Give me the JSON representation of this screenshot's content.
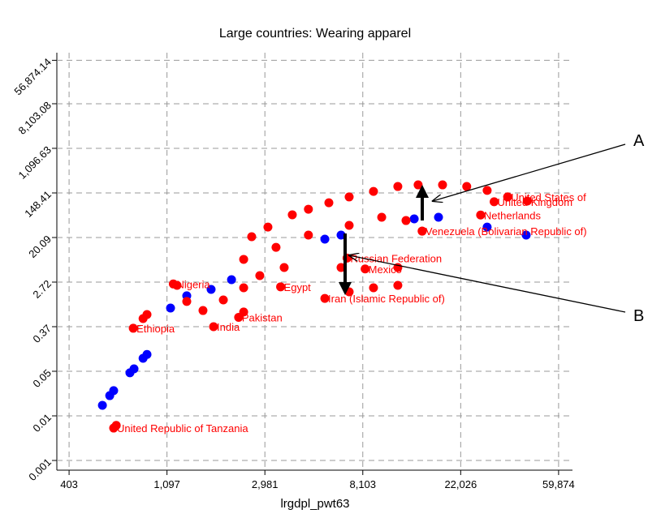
{
  "chart_data": {
    "type": "scatter",
    "title": "Large countries: Wearing apparel",
    "x_label": "lrgdpl_pwt63",
    "xscale": "log",
    "yscale": "log",
    "grid": true,
    "xlim": [
      356,
      69000
    ],
    "ylim": [
      0.00059,
      80000
    ],
    "xticks": [
      {
        "value": 403.43,
        "label": "403"
      },
      {
        "value": 1096.63,
        "label": "1,097"
      },
      {
        "value": 2980.96,
        "label": "2,981"
      },
      {
        "value": 8103.08,
        "label": "8,103"
      },
      {
        "value": 22026.47,
        "label": "22,026"
      },
      {
        "value": 59874.14,
        "label": "59,874"
      }
    ],
    "yticks": [
      {
        "value": 0.000912,
        "label": "0.001"
      },
      {
        "value": 0.00674,
        "label": "0.01"
      },
      {
        "value": 0.0498,
        "label": "0.05"
      },
      {
        "value": 0.3679,
        "label": "0.37"
      },
      {
        "value": 2.718,
        "label": "2.72"
      },
      20.09,
      148.41,
      {
        "value": 1096.63,
        "label": "1,096.63"
      },
      {
        "value": 8103.08,
        "label": "8,103.08"
      },
      {
        "value": 56874.14,
        "label": "56,874.14"
      }
    ],
    "series": [
      {
        "color": "#0000ff",
        "x": [
          567,
          611,
          636,
          751,
          783,
          859,
          894,
          1137,
          1342,
          1721,
          2120,
          5500,
          6490,
          13700,
          17560,
          28860,
          43000
        ],
        "y": [
          0.0108,
          0.0167,
          0.0209,
          0.0465,
          0.0556,
          0.089,
          0.106,
          0.85,
          1.47,
          1.96,
          3.03,
          18.7,
          22.4,
          46.3,
          49.9,
          32.1,
          22.4
        ]
      },
      {
        "color": "#ff0000",
        "x": [
          653,
          859,
          894,
          2605,
          3075,
          3944,
          4650,
          5730,
          7050,
          9040,
          11590,
          14260,
          18300,
          23430,
          28860,
          35600,
          43500,
          2400,
          3340,
          4650,
          7050,
          9830,
          12600,
          14860,
          7050,
          9040,
          11590,
          6490,
          11590,
          1215,
          1342,
          1584,
          1950,
          2400,
          2830,
          3630,
          2400
        ],
        "y": [
          0.0044,
          0.53,
          0.634,
          20.8,
          32.1,
          55.7,
          71.5,
          95.6,
          124,
          159,
          198,
          213,
          213,
          198,
          166,
          124,
          103,
          7.54,
          12.9,
          22.4,
          34.6,
          49.9,
          43.0,
          26.8,
          1.76,
          2.11,
          2.35,
          5.23,
          5.23,
          2.35,
          1.14,
          0.76,
          1.22,
          2.11,
          3.63,
          5.23,
          0.71
        ]
      }
    ],
    "point_labels": [
      {
        "text": "United Republic of Tanzania",
        "x": 636,
        "y": 0.0039
      },
      {
        "text": "Ethiopia",
        "x": 777,
        "y": 0.343
      },
      {
        "text": "India",
        "x": 1765,
        "y": 0.368
      },
      {
        "text": "Pakistan",
        "x": 2280,
        "y": 0.56
      },
      {
        "text": "Nigeria",
        "x": 1170,
        "y": 2.5
      },
      {
        "text": "Egypt",
        "x": 3500,
        "y": 2.2
      },
      {
        "text": "Iran (Islamic Republic of)",
        "x": 5500,
        "y": 1.31
      },
      {
        "text": "Mexico",
        "x": 8300,
        "y": 4.9
      },
      {
        "text": "Russian Federation",
        "x": 6900,
        "y": 8.0
      },
      {
        "text": "Venezuela (Bolivarian Republic of)",
        "x": 14860,
        "y": 26.8
      },
      {
        "text": "Netherlands",
        "x": 27000,
        "y": 55
      },
      {
        "text": "United Kingdom",
        "x": 31000,
        "y": 100
      },
      {
        "text": "United States of",
        "x": 35600,
        "y": 124
      }
    ],
    "annotations": [
      "A",
      "B"
    ]
  }
}
